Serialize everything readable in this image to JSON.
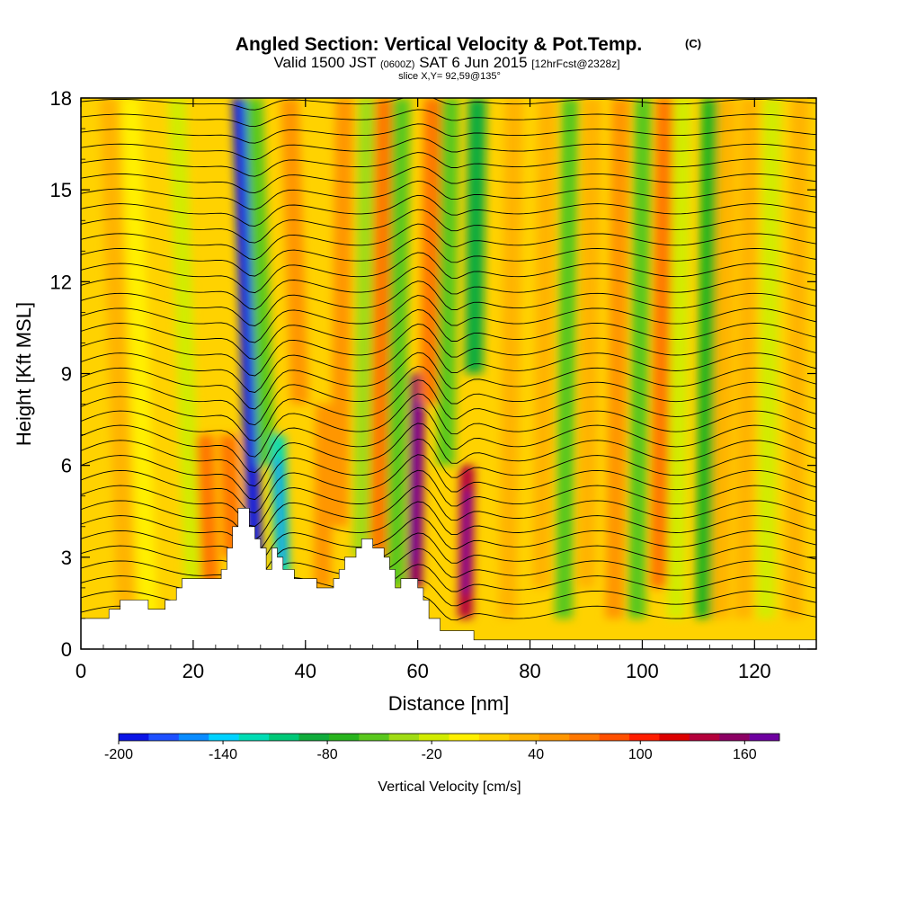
{
  "chart_data": {
    "type": "heatmap",
    "title": "Angled Section: Vertical Velocity & Pot.Temp.",
    "title_units": "(C)",
    "subtitle_parts": [
      "Valid 1500 JST",
      "(0600Z)",
      "SAT 6 Jun 2015",
      "[12hrFcst@2328z]"
    ],
    "slice_text": "slice X,Y= 92,59@135°",
    "xlabel": "Distance [nm]",
    "ylabel": "Height [Kft MSL]",
    "xlim": [
      0,
      131
    ],
    "ylim": [
      0,
      18
    ],
    "xticks": [
      "0",
      "20",
      "40",
      "60",
      "80",
      "100",
      "120"
    ],
    "yticks": [
      "0",
      "3",
      "6",
      "9",
      "12",
      "15",
      "18"
    ],
    "colorbar": {
      "label": "Vertical Velocity [cm/s]",
      "range": [
        -200,
        180
      ],
      "tick_labels": [
        "-200",
        "-140",
        "-80",
        "-20",
        "40",
        "100",
        "160"
      ],
      "colors": [
        "#0a14e6",
        "#1e50ff",
        "#0a8cff",
        "#00d2ff",
        "#00dcb4",
        "#00c878",
        "#10ac3c",
        "#28b41e",
        "#5ac81e",
        "#a0dc14",
        "#d2ec00",
        "#fff000",
        "#ffd200",
        "#ffb400",
        "#ff9600",
        "#ff7800",
        "#ff5000",
        "#ff1e00",
        "#dc0000",
        "#b4003c",
        "#8c0064",
        "#6e00a0"
      ]
    },
    "background_value": 15,
    "vertical_velocity_features": [
      {
        "x": 8,
        "z_bottom": 1,
        "z_top": 18,
        "value": 30
      },
      {
        "x": 12,
        "z_bottom": 1,
        "z_top": 18,
        "value": -10
      },
      {
        "x": 20,
        "z_bottom": 2,
        "z_top": 18,
        "value": -15
      },
      {
        "x": 23,
        "z_bottom": 2,
        "z_top": 7,
        "value": 60
      },
      {
        "x": 27,
        "z_bottom": 3,
        "z_top": 7,
        "value": 70
      },
      {
        "x": 31,
        "z_bottom": 3,
        "z_top": 18,
        "value": -190
      },
      {
        "x": 33,
        "z_bottom": 6,
        "z_top": 18,
        "value": -60
      },
      {
        "x": 36,
        "z_bottom": 2,
        "z_top": 7,
        "value": -120
      },
      {
        "x": 39,
        "z_bottom": 8,
        "z_top": 18,
        "value": 50
      },
      {
        "x": 43,
        "z_bottom": 2,
        "z_top": 8,
        "value": 50
      },
      {
        "x": 46,
        "z_bottom": 4,
        "z_top": 18,
        "value": 50
      },
      {
        "x": 50,
        "z_bottom": 3,
        "z_top": 18,
        "value": -40
      },
      {
        "x": 53,
        "z_bottom": 3,
        "z_top": 18,
        "value": 60
      },
      {
        "x": 56,
        "z_bottom": 2,
        "z_top": 18,
        "value": -50
      },
      {
        "x": 59.5,
        "z_bottom": 2,
        "z_top": 9,
        "value": 150
      },
      {
        "x": 62,
        "z_bottom": 8,
        "z_top": 18,
        "value": 60
      },
      {
        "x": 65,
        "z_bottom": 6,
        "z_top": 18,
        "value": -60
      },
      {
        "x": 68.5,
        "z_bottom": 1,
        "z_top": 6,
        "value": 130
      },
      {
        "x": 70,
        "z_bottom": 9,
        "z_top": 18,
        "value": -80
      },
      {
        "x": 76,
        "z_bottom": 1,
        "z_top": 18,
        "value": 40
      },
      {
        "x": 82,
        "z_bottom": 2,
        "z_top": 18,
        "value": 40
      },
      {
        "x": 86,
        "z_bottom": 1,
        "z_top": 18,
        "value": -50
      },
      {
        "x": 90,
        "z_bottom": 2,
        "z_top": 18,
        "value": 40
      },
      {
        "x": 95,
        "z_bottom": 1,
        "z_top": 18,
        "value": 50
      },
      {
        "x": 99,
        "z_bottom": 1,
        "z_top": 18,
        "value": -60
      },
      {
        "x": 103,
        "z_bottom": 2,
        "z_top": 18,
        "value": 70
      },
      {
        "x": 106,
        "z_bottom": 1,
        "z_top": 18,
        "value": -20
      },
      {
        "x": 111,
        "z_bottom": 1,
        "z_top": 18,
        "value": -70
      },
      {
        "x": 114,
        "z_bottom": 1,
        "z_top": 18,
        "value": 40
      },
      {
        "x": 118,
        "z_bottom": 1,
        "z_top": 18,
        "value": 30
      },
      {
        "x": 122,
        "z_bottom": 1,
        "z_top": 18,
        "value": -20
      },
      {
        "x": 127,
        "z_bottom": 1,
        "z_top": 18,
        "value": 30
      }
    ],
    "terrain_profile": [
      {
        "x": 0,
        "z": 0.6
      },
      {
        "x": 0,
        "z": 1.0
      },
      {
        "x": 5,
        "z": 1.0
      },
      {
        "x": 5,
        "z": 1.3
      },
      {
        "x": 7,
        "z": 1.3
      },
      {
        "x": 7,
        "z": 1.6
      },
      {
        "x": 12,
        "z": 1.6
      },
      {
        "x": 12,
        "z": 1.3
      },
      {
        "x": 15,
        "z": 1.3
      },
      {
        "x": 15,
        "z": 1.6
      },
      {
        "x": 17,
        "z": 1.6
      },
      {
        "x": 17,
        "z": 2.0
      },
      {
        "x": 18,
        "z": 2.0
      },
      {
        "x": 18,
        "z": 2.3
      },
      {
        "x": 25,
        "z": 2.3
      },
      {
        "x": 25,
        "z": 2.6
      },
      {
        "x": 26,
        "z": 2.6
      },
      {
        "x": 26,
        "z": 3.3
      },
      {
        "x": 27,
        "z": 3.3
      },
      {
        "x": 27,
        "z": 4.0
      },
      {
        "x": 28,
        "z": 4.0
      },
      {
        "x": 28,
        "z": 4.6
      },
      {
        "x": 30,
        "z": 4.6
      },
      {
        "x": 30,
        "z": 4.0
      },
      {
        "x": 31,
        "z": 4.0
      },
      {
        "x": 31,
        "z": 3.6
      },
      {
        "x": 32,
        "z": 3.6
      },
      {
        "x": 32,
        "z": 3.3
      },
      {
        "x": 33,
        "z": 3.3
      },
      {
        "x": 33,
        "z": 2.6
      },
      {
        "x": 34,
        "z": 2.6
      },
      {
        "x": 34,
        "z": 3.3
      },
      {
        "x": 35,
        "z": 3.3
      },
      {
        "x": 35,
        "z": 3.0
      },
      {
        "x": 36,
        "z": 3.0
      },
      {
        "x": 36,
        "z": 2.6
      },
      {
        "x": 38,
        "z": 2.6
      },
      {
        "x": 38,
        "z": 2.3
      },
      {
        "x": 42,
        "z": 2.3
      },
      {
        "x": 42,
        "z": 2.0
      },
      {
        "x": 45,
        "z": 2.0
      },
      {
        "x": 45,
        "z": 2.3
      },
      {
        "x": 46,
        "z": 2.3
      },
      {
        "x": 46,
        "z": 2.6
      },
      {
        "x": 47,
        "z": 2.6
      },
      {
        "x": 47,
        "z": 3.0
      },
      {
        "x": 49,
        "z": 3.0
      },
      {
        "x": 49,
        "z": 3.3
      },
      {
        "x": 50,
        "z": 3.3
      },
      {
        "x": 50,
        "z": 3.6
      },
      {
        "x": 52,
        "z": 3.6
      },
      {
        "x": 52,
        "z": 3.3
      },
      {
        "x": 54,
        "z": 3.3
      },
      {
        "x": 54,
        "z": 3.0
      },
      {
        "x": 55,
        "z": 3.0
      },
      {
        "x": 55,
        "z": 2.6
      },
      {
        "x": 56,
        "z": 2.6
      },
      {
        "x": 56,
        "z": 2.0
      },
      {
        "x": 57,
        "z": 2.0
      },
      {
        "x": 57,
        "z": 2.3
      },
      {
        "x": 60,
        "z": 2.3
      },
      {
        "x": 60,
        "z": 2.0
      },
      {
        "x": 61,
        "z": 2.0
      },
      {
        "x": 61,
        "z": 1.6
      },
      {
        "x": 62,
        "z": 1.6
      },
      {
        "x": 62,
        "z": 1.0
      },
      {
        "x": 64,
        "z": 1.0
      },
      {
        "x": 64,
        "z": 0.6
      },
      {
        "x": 70,
        "z": 0.6
      },
      {
        "x": 70,
        "z": 0.3
      },
      {
        "x": 131,
        "z": 0.3
      },
      {
        "x": 131,
        "z": 0
      }
    ],
    "theta_contour_levels": [
      21,
      22,
      23,
      24,
      25,
      26,
      27,
      28,
      29,
      30,
      31,
      32,
      33,
      34,
      35,
      36,
      37,
      38,
      39,
      40,
      41,
      42,
      43,
      44,
      45,
      46,
      47,
      48,
      49,
      50,
      51,
      52,
      53,
      54,
      55,
      56
    ]
  },
  "colors": {
    "background": "#ffffff",
    "terrain": "#ffffff",
    "contour": "#000000"
  }
}
